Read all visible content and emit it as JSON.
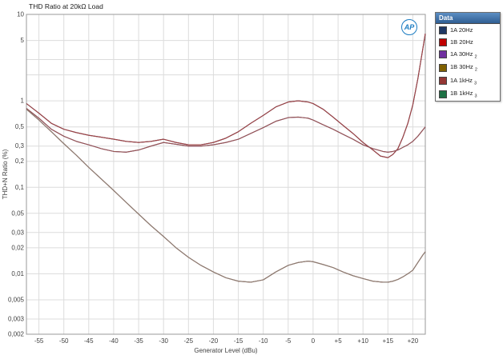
{
  "title": "THD Ratio at 20kΩ Load",
  "logo": {
    "text": "AP"
  },
  "legend": {
    "title": "Data"
  },
  "chart_data": {
    "type": "line",
    "title": "THD Ratio at 20kΩ Load",
    "xlabel": "Generator Level (dBu)",
    "ylabel": "THD+N Ratio (%)",
    "x_scale": "linear",
    "y_scale": "log",
    "xlim": [
      -57.5,
      22.5
    ],
    "ylim": [
      0.002,
      10
    ],
    "grid": true,
    "legend_position": "top-right-outside",
    "x_ticks": [
      -55,
      -50,
      -45,
      -40,
      -35,
      -30,
      -25,
      -20,
      -15,
      -10,
      -5,
      0,
      5,
      10,
      15,
      20
    ],
    "x_tick_labels": [
      "-55",
      "-50",
      "-45",
      "-40",
      "-35",
      "-30",
      "-25",
      "-20",
      "-15",
      "-10",
      "-5",
      "0",
      "+5",
      "+10",
      "+15",
      "+20"
    ],
    "y_ticks": [
      10,
      5,
      1,
      0.5,
      0.3,
      0.2,
      0.1,
      0.05,
      0.03,
      0.02,
      0.01,
      0.005,
      0.003,
      0.002
    ],
    "y_tick_labels": [
      "10",
      "5",
      "1",
      "0,5",
      "0,3",
      "0,2",
      "0,1",
      "0,05",
      "0,03",
      "0,02",
      "0,01",
      "0,005",
      "0,003",
      "0,002"
    ],
    "y_grid": [
      0.002,
      0.003,
      0.005,
      0.01,
      0.02,
      0.03,
      0.05,
      0.1,
      0.2,
      0.3,
      0.5,
      1,
      2,
      3,
      5,
      10
    ],
    "colors": {
      "grid": "#dcdcdc",
      "border": "#9a9a9a",
      "text": "#3f3f3f"
    },
    "series": [
      {
        "name": "1A 20Hz",
        "sub": "",
        "color": "#1f3864",
        "plot_color": "#1f3864",
        "points": [
          [
            -57.5,
            0.93
          ],
          [
            -55,
            0.72
          ],
          [
            -52.5,
            0.55
          ],
          [
            -50,
            0.47
          ],
          [
            -47.5,
            0.43
          ],
          [
            -45,
            0.4
          ],
          [
            -42.5,
            0.38
          ],
          [
            -40,
            0.36
          ],
          [
            -37.5,
            0.34
          ],
          [
            -35,
            0.33
          ],
          [
            -32.5,
            0.34
          ],
          [
            -30,
            0.36
          ],
          [
            -27.5,
            0.33
          ],
          [
            -25,
            0.31
          ],
          [
            -22.5,
            0.31
          ],
          [
            -20,
            0.33
          ],
          [
            -17.5,
            0.37
          ],
          [
            -15,
            0.44
          ],
          [
            -12.5,
            0.55
          ],
          [
            -10,
            0.68
          ],
          [
            -7.5,
            0.85
          ],
          [
            -5,
            0.97
          ],
          [
            -3,
            1.0
          ],
          [
            -1,
            0.97
          ],
          [
            0,
            0.93
          ],
          [
            2,
            0.8
          ],
          [
            4,
            0.65
          ],
          [
            6,
            0.52
          ],
          [
            8,
            0.42
          ],
          [
            10,
            0.33
          ],
          [
            12,
            0.27
          ],
          [
            13.5,
            0.23
          ],
          [
            15,
            0.22
          ],
          [
            16,
            0.24
          ],
          [
            17,
            0.28
          ],
          [
            18,
            0.38
          ],
          [
            19,
            0.55
          ],
          [
            20,
            0.9
          ],
          [
            21,
            1.8
          ],
          [
            22,
            4.0
          ],
          [
            22.5,
            6.0
          ]
        ]
      },
      {
        "name": "1B 20Hz",
        "sub": "",
        "color": "#c00000",
        "plot_color": "#a34242",
        "points": [
          [
            -57.5,
            0.93
          ],
          [
            -55,
            0.72
          ],
          [
            -52.5,
            0.55
          ],
          [
            -50,
            0.47
          ],
          [
            -47.5,
            0.43
          ],
          [
            -45,
            0.4
          ],
          [
            -42.5,
            0.38
          ],
          [
            -40,
            0.36
          ],
          [
            -37.5,
            0.34
          ],
          [
            -35,
            0.33
          ],
          [
            -32.5,
            0.34
          ],
          [
            -30,
            0.36
          ],
          [
            -27.5,
            0.33
          ],
          [
            -25,
            0.31
          ],
          [
            -22.5,
            0.31
          ],
          [
            -20,
            0.33
          ],
          [
            -17.5,
            0.37
          ],
          [
            -15,
            0.44
          ],
          [
            -12.5,
            0.55
          ],
          [
            -10,
            0.68
          ],
          [
            -7.5,
            0.85
          ],
          [
            -5,
            0.97
          ],
          [
            -3,
            1.0
          ],
          [
            -1,
            0.97
          ],
          [
            0,
            0.93
          ],
          [
            2,
            0.8
          ],
          [
            4,
            0.65
          ],
          [
            6,
            0.52
          ],
          [
            8,
            0.42
          ],
          [
            10,
            0.33
          ],
          [
            12,
            0.27
          ],
          [
            13.5,
            0.23
          ],
          [
            15,
            0.22
          ],
          [
            16,
            0.24
          ],
          [
            17,
            0.28
          ],
          [
            18,
            0.38
          ],
          [
            19,
            0.55
          ],
          [
            20,
            0.9
          ],
          [
            21,
            1.8
          ],
          [
            22,
            4.0
          ],
          [
            22.5,
            6.0
          ]
        ]
      },
      {
        "name": "1A 30Hz",
        "sub": "2",
        "color": "#7030a0",
        "plot_color": "#7030a0",
        "points": [
          [
            -57.5,
            0.82
          ],
          [
            -55,
            0.63
          ],
          [
            -52.5,
            0.47
          ],
          [
            -50,
            0.39
          ],
          [
            -47.5,
            0.34
          ],
          [
            -45,
            0.31
          ],
          [
            -42.5,
            0.28
          ],
          [
            -40,
            0.26
          ],
          [
            -37.5,
            0.255
          ],
          [
            -35,
            0.27
          ],
          [
            -32.5,
            0.3
          ],
          [
            -30,
            0.33
          ],
          [
            -27.5,
            0.315
          ],
          [
            -25,
            0.3
          ],
          [
            -22.5,
            0.3
          ],
          [
            -20,
            0.31
          ],
          [
            -17.5,
            0.33
          ],
          [
            -15,
            0.36
          ],
          [
            -12.5,
            0.42
          ],
          [
            -10,
            0.49
          ],
          [
            -7.5,
            0.58
          ],
          [
            -5,
            0.64
          ],
          [
            -3,
            0.65
          ],
          [
            -1,
            0.63
          ],
          [
            0,
            0.6
          ],
          [
            2,
            0.53
          ],
          [
            4,
            0.47
          ],
          [
            6,
            0.41
          ],
          [
            8,
            0.36
          ],
          [
            10,
            0.31
          ],
          [
            12,
            0.28
          ],
          [
            14,
            0.26
          ],
          [
            15,
            0.255
          ],
          [
            16,
            0.26
          ],
          [
            17,
            0.27
          ],
          [
            18,
            0.29
          ],
          [
            19,
            0.31
          ],
          [
            20,
            0.34
          ],
          [
            21,
            0.39
          ],
          [
            22,
            0.46
          ],
          [
            22.5,
            0.5
          ]
        ]
      },
      {
        "name": "1B 30Hz",
        "sub": "2",
        "color": "#7f6000",
        "plot_color": "#96574f",
        "points": [
          [
            -57.5,
            0.82
          ],
          [
            -55,
            0.63
          ],
          [
            -52.5,
            0.47
          ],
          [
            -50,
            0.39
          ],
          [
            -47.5,
            0.34
          ],
          [
            -45,
            0.31
          ],
          [
            -42.5,
            0.28
          ],
          [
            -40,
            0.26
          ],
          [
            -37.5,
            0.255
          ],
          [
            -35,
            0.27
          ],
          [
            -32.5,
            0.3
          ],
          [
            -30,
            0.33
          ],
          [
            -27.5,
            0.315
          ],
          [
            -25,
            0.3
          ],
          [
            -22.5,
            0.3
          ],
          [
            -20,
            0.31
          ],
          [
            -17.5,
            0.33
          ],
          [
            -15,
            0.36
          ],
          [
            -12.5,
            0.42
          ],
          [
            -10,
            0.49
          ],
          [
            -7.5,
            0.58
          ],
          [
            -5,
            0.64
          ],
          [
            -3,
            0.65
          ],
          [
            -1,
            0.63
          ],
          [
            0,
            0.6
          ],
          [
            2,
            0.53
          ],
          [
            4,
            0.47
          ],
          [
            6,
            0.41
          ],
          [
            8,
            0.36
          ],
          [
            10,
            0.31
          ],
          [
            12,
            0.28
          ],
          [
            14,
            0.26
          ],
          [
            15,
            0.255
          ],
          [
            16,
            0.26
          ],
          [
            17,
            0.27
          ],
          [
            18,
            0.29
          ],
          [
            19,
            0.31
          ],
          [
            20,
            0.34
          ],
          [
            21,
            0.39
          ],
          [
            22,
            0.46
          ],
          [
            22.5,
            0.5
          ]
        ]
      },
      {
        "name": "1A 1kHz",
        "sub": "3",
        "color": "#943634",
        "plot_color": "#943634",
        "points": [
          [
            -57.5,
            0.8
          ],
          [
            -55,
            0.6
          ],
          [
            -52.5,
            0.44
          ],
          [
            -50,
            0.32
          ],
          [
            -47.5,
            0.235
          ],
          [
            -45,
            0.17
          ],
          [
            -42.5,
            0.125
          ],
          [
            -40,
            0.092
          ],
          [
            -37.5,
            0.067
          ],
          [
            -35,
            0.049
          ],
          [
            -32.5,
            0.036
          ],
          [
            -30,
            0.027
          ],
          [
            -27.5,
            0.02
          ],
          [
            -25,
            0.0155
          ],
          [
            -22.5,
            0.0125
          ],
          [
            -20,
            0.0105
          ],
          [
            -17.5,
            0.009
          ],
          [
            -15,
            0.0082
          ],
          [
            -12.5,
            0.008
          ],
          [
            -10,
            0.0085
          ],
          [
            -7.5,
            0.0105
          ],
          [
            -5,
            0.0125
          ],
          [
            -3,
            0.0135
          ],
          [
            -1,
            0.014
          ],
          [
            0,
            0.0138
          ],
          [
            2,
            0.0128
          ],
          [
            4,
            0.0118
          ],
          [
            6,
            0.0105
          ],
          [
            8,
            0.0095
          ],
          [
            10,
            0.0088
          ],
          [
            12,
            0.0082
          ],
          [
            14,
            0.008
          ],
          [
            15,
            0.008
          ],
          [
            16,
            0.0082
          ],
          [
            17,
            0.0086
          ],
          [
            18,
            0.0092
          ],
          [
            19,
            0.01
          ],
          [
            20,
            0.011
          ],
          [
            21,
            0.0135
          ],
          [
            22,
            0.0165
          ],
          [
            22.5,
            0.018
          ]
        ]
      },
      {
        "name": "1B 1kHz",
        "sub": "3",
        "color": "#1e7145",
        "plot_color": "#8a7f74",
        "points": [
          [
            -57.5,
            0.8
          ],
          [
            -55,
            0.6
          ],
          [
            -52.5,
            0.44
          ],
          [
            -50,
            0.32
          ],
          [
            -47.5,
            0.235
          ],
          [
            -45,
            0.17
          ],
          [
            -42.5,
            0.125
          ],
          [
            -40,
            0.092
          ],
          [
            -37.5,
            0.067
          ],
          [
            -35,
            0.049
          ],
          [
            -32.5,
            0.036
          ],
          [
            -30,
            0.027
          ],
          [
            -27.5,
            0.02
          ],
          [
            -25,
            0.0155
          ],
          [
            -22.5,
            0.0125
          ],
          [
            -20,
            0.0105
          ],
          [
            -17.5,
            0.009
          ],
          [
            -15,
            0.0082
          ],
          [
            -12.5,
            0.008
          ],
          [
            -10,
            0.0085
          ],
          [
            -7.5,
            0.0105
          ],
          [
            -5,
            0.0125
          ],
          [
            -3,
            0.0135
          ],
          [
            -1,
            0.014
          ],
          [
            0,
            0.0138
          ],
          [
            2,
            0.0128
          ],
          [
            4,
            0.0118
          ],
          [
            6,
            0.0105
          ],
          [
            8,
            0.0095
          ],
          [
            10,
            0.0088
          ],
          [
            12,
            0.0082
          ],
          [
            14,
            0.008
          ],
          [
            15,
            0.008
          ],
          [
            16,
            0.0082
          ],
          [
            17,
            0.0086
          ],
          [
            18,
            0.0092
          ],
          [
            19,
            0.01
          ],
          [
            20,
            0.011
          ],
          [
            21,
            0.0135
          ],
          [
            22,
            0.0165
          ],
          [
            22.5,
            0.018
          ]
        ]
      }
    ]
  }
}
